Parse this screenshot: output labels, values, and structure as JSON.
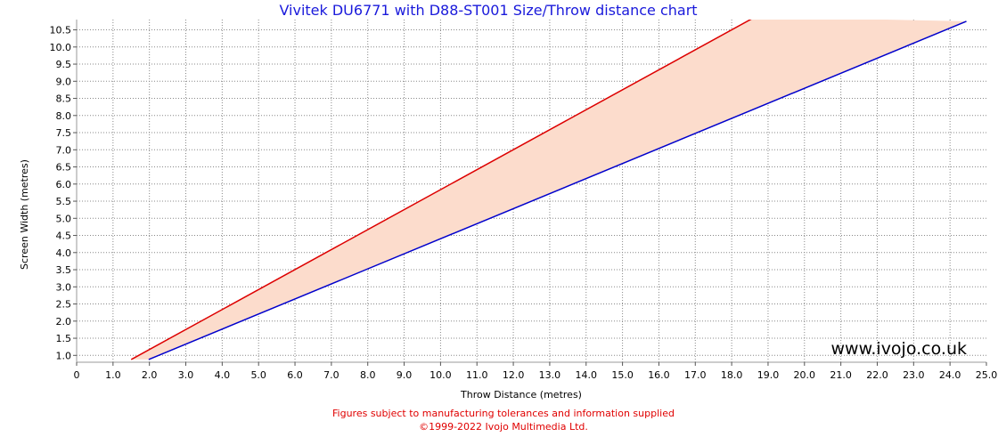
{
  "chart_data": {
    "type": "area",
    "title": "Vivitek DU6771 with D88-ST001 Size/Throw distance chart",
    "xlabel": "Throw Distance (metres)",
    "ylabel": "Screen Width (metres)",
    "xlim": [
      0,
      25
    ],
    "ylim": [
      0.8,
      10.8
    ],
    "x_ticks": [
      "0",
      "1.0",
      "2.0",
      "3.0",
      "4.0",
      "5.0",
      "6.0",
      "7.0",
      "8.0",
      "9.0",
      "10.0",
      "11.0",
      "12.0",
      "13.0",
      "14.0",
      "15.0",
      "16.0",
      "17.0",
      "18.0",
      "19.0",
      "20.0",
      "21.0",
      "22.0",
      "23.0",
      "24.0",
      "25.0"
    ],
    "y_ticks": [
      "1.0",
      "1.5",
      "2.0",
      "2.5",
      "3.0",
      "3.5",
      "4.0",
      "4.5",
      "5.0",
      "5.5",
      "6.0",
      "6.5",
      "7.0",
      "7.5",
      "8.0",
      "8.5",
      "9.0",
      "9.5",
      "10.0",
      "10.5"
    ],
    "grid": true,
    "series": [
      {
        "color": "#dd0000",
        "x": [
          1.5,
          18.65
        ],
        "y": [
          0.88,
          10.88
        ]
      },
      {
        "color": "#0000cc",
        "x": [
          1.98,
          24.45
        ],
        "y": [
          0.88,
          10.75
        ]
      }
    ],
    "fill_color": "#fcdccc",
    "watermark": "www.ivojo.co.uk"
  },
  "footer": {
    "line1": "Figures subject to manufacturing tolerances and information supplied",
    "line2": "©1999-2022 Ivojo Multimedia Ltd."
  }
}
